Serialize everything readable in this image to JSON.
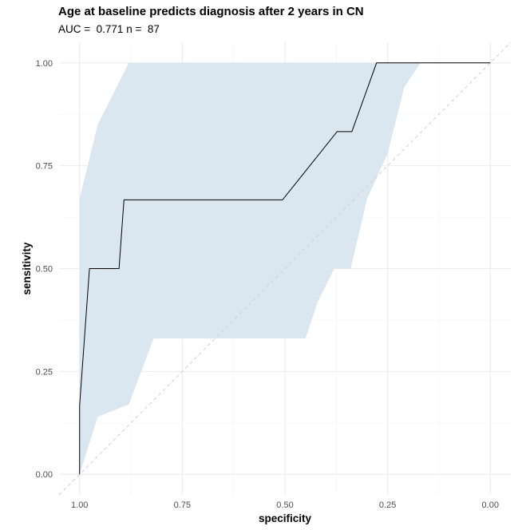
{
  "chart_data": {
    "type": "line",
    "title": "Age at baseline predicts diagnosis after 2 years in CN",
    "subtitle": {
      "auc_label": "AUC = ",
      "auc_value": "0.771",
      "n_label": "n = ",
      "n_value": "87"
    },
    "xlabel": "specificity",
    "ylabel": "sensitivity",
    "xlim": [
      1.05,
      -0.05
    ],
    "ylim": [
      -0.05,
      1.05
    ],
    "x_reversed": true,
    "x_ticks": [
      1.0,
      0.75,
      0.5,
      0.25,
      0.0
    ],
    "x_tick_labels": [
      "1.00",
      "0.75",
      "0.50",
      "0.25",
      "0.00"
    ],
    "y_ticks": [
      0.0,
      0.25,
      0.5,
      0.75,
      1.0
    ],
    "y_tick_labels": [
      "0.00",
      "0.25",
      "0.50",
      "0.75",
      "1.00"
    ],
    "grid": true,
    "series": [
      {
        "kind": "roc_curve",
        "x": [
          1.0,
          1.0,
          0.976,
          0.904,
          0.892,
          0.892,
          0.506,
          0.373,
          0.337,
          0.277,
          0.0
        ],
        "y": [
          0.0,
          0.167,
          0.5,
          0.5,
          0.667,
          0.667,
          0.667,
          0.833,
          0.833,
          1.0,
          1.0
        ]
      },
      {
        "kind": "confidence_band",
        "x": [
          1.0,
          0.956,
          0.88,
          0.88,
          0.88,
          0.88,
          0.88,
          0.88,
          0.82,
          0.82,
          0.72,
          0.72,
          0.5,
          0.5,
          0.5,
          0.45,
          0.42,
          0.38,
          0.34,
          0.3,
          0.25,
          0.21,
          0.17,
          0.0
        ],
        "upper": [
          0.67,
          0.85,
          1.0,
          1.0,
          1.0,
          1.0,
          1.0,
          1.0,
          1.0,
          1.0,
          1.0,
          1.0,
          1.0,
          1.0,
          1.0,
          1.0,
          1.0,
          1.0,
          1.0,
          1.0,
          1.0,
          1.0,
          1.0,
          1.0
        ],
        "lower": [
          0.0,
          0.14,
          0.17,
          0.17,
          0.17,
          0.17,
          0.17,
          0.17,
          0.33,
          0.33,
          0.33,
          0.33,
          0.33,
          0.33,
          0.33,
          0.33,
          0.42,
          0.5,
          0.5,
          0.67,
          0.78,
          0.94,
          1.0,
          1.0
        ]
      },
      {
        "kind": "reference_diagonal",
        "x": [
          1.05,
          -0.05
        ],
        "y": [
          -0.05,
          1.05
        ]
      }
    ],
    "colors": {
      "curve": "#000000",
      "band": "#dae6f0",
      "diagonal": "#cfcfcf",
      "grid_major": "#ebebeb",
      "grid_minor": "#f4f4f4",
      "tick_text": "#4d4d4d"
    }
  }
}
